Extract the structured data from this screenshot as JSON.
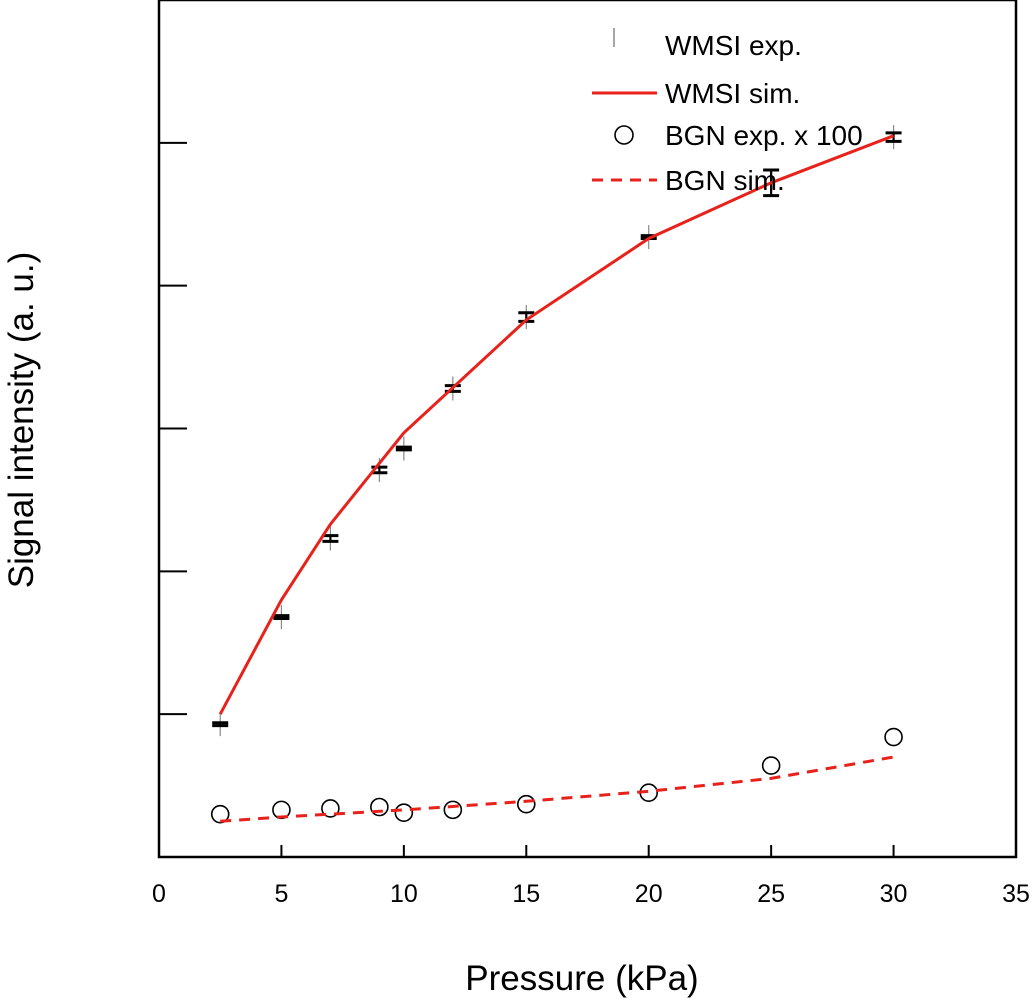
{
  "chart_data": {
    "type": "line",
    "title": "",
    "xlabel": "Pressure (kPa)",
    "ylabel": "Signal intensity (a. u.)",
    "xlim": [
      0,
      35
    ],
    "ylim": [
      0,
      6
    ],
    "x_ticks": [
      0,
      5,
      10,
      15,
      20,
      25,
      30,
      35
    ],
    "y_ticks": [
      1,
      2,
      3,
      4,
      5,
      6
    ],
    "y_tick_labels_shown": false,
    "grid": false,
    "legend_position": "top-right",
    "series": [
      {
        "name": "WMSI exp.",
        "style": "errorbar",
        "color": "#000000",
        "x": [
          2.5,
          5,
          7,
          9,
          10,
          12,
          15,
          20,
          25,
          30
        ],
        "y": [
          0.93,
          1.68,
          2.23,
          2.71,
          2.86,
          3.28,
          3.78,
          4.34,
          4.72,
          5.04
        ],
        "yerr": [
          0.01,
          0.01,
          0.02,
          0.02,
          0.01,
          0.02,
          0.03,
          0.01,
          0.09,
          0.03
        ]
      },
      {
        "name": "WMSI sim.",
        "style": "solid-line",
        "color": "#e8221b",
        "x": [
          2.5,
          5,
          7,
          10,
          15,
          20,
          25,
          30
        ],
        "y": [
          1.0,
          1.8,
          2.33,
          2.97,
          3.76,
          4.33,
          4.72,
          5.05
        ]
      },
      {
        "name": "BGN exp. x 100",
        "style": "open-circle",
        "color": "#000000",
        "x": [
          2.5,
          5,
          7,
          9,
          10,
          12,
          15,
          20,
          25,
          30
        ],
        "y": [
          0.3,
          0.33,
          0.34,
          0.35,
          0.31,
          0.33,
          0.37,
          0.45,
          0.64,
          0.84
        ]
      },
      {
        "name": "BGN sim.",
        "style": "dashed-line",
        "color": "#e8221b",
        "x": [
          2.5,
          5,
          10,
          15,
          20,
          25,
          30
        ],
        "y": [
          0.25,
          0.28,
          0.33,
          0.39,
          0.46,
          0.55,
          0.7
        ]
      }
    ]
  }
}
